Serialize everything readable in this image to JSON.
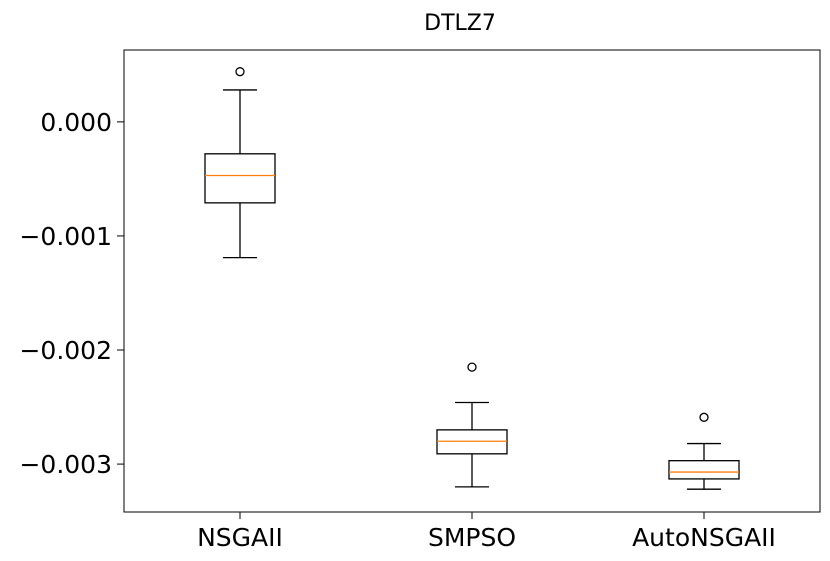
{
  "chart_data": {
    "type": "box",
    "title": "DTLZ7",
    "xlabel": "",
    "ylabel": "",
    "categories": [
      "NSGAII",
      "SMPSO",
      "AutoNSGAII"
    ],
    "ylim": [
      -0.00342,
      0.00063
    ],
    "yticks": [
      0.0,
      -0.001,
      -0.002,
      -0.003
    ],
    "ytick_labels": [
      "0.000",
      "−0.001",
      "−0.002",
      "−0.003"
    ],
    "boxes": [
      {
        "category": "NSGAII",
        "whisker_low": -0.00119,
        "q1": -0.00071,
        "median": -0.00047,
        "q3": -0.00028,
        "whisker_high": 0.00028,
        "outliers": [
          0.00044
        ]
      },
      {
        "category": "SMPSO",
        "whisker_low": -0.0032,
        "q1": -0.00291,
        "median": -0.0028,
        "q3": -0.0027,
        "whisker_high": -0.00246,
        "outliers": [
          -0.00215
        ]
      },
      {
        "category": "AutoNSGAII",
        "whisker_low": -0.00322,
        "q1": -0.00313,
        "median": -0.00307,
        "q3": -0.00297,
        "whisker_high": -0.00282,
        "outliers": [
          -0.00259
        ]
      }
    ],
    "colors": {
      "box": "#000000",
      "median": "#ff7f0e",
      "outlier": "#000000"
    },
    "grid": false
  }
}
